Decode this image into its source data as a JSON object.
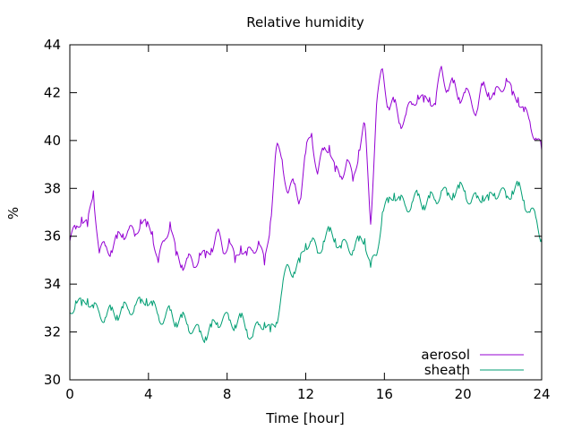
{
  "chart_data": {
    "type": "line",
    "title": "Relative humidity",
    "xlabel": "Time [hour]",
    "ylabel": "%",
    "xlim": [
      0,
      24
    ],
    "ylim": [
      30,
      44
    ],
    "xticks": [
      0,
      4,
      8,
      12,
      16,
      20,
      24
    ],
    "yticks": [
      30,
      32,
      34,
      36,
      38,
      40,
      42,
      44
    ],
    "grid": false,
    "legend_position": "bottom-right",
    "series": [
      {
        "name": "aerosol",
        "color": "#9400d3",
        "x": [
          0,
          0.3,
          0.6,
          0.9,
          1.2,
          1.5,
          1.8,
          2.1,
          2.4,
          2.7,
          3.0,
          3.3,
          3.6,
          3.9,
          4.2,
          4.5,
          4.8,
          5.1,
          5.4,
          5.7,
          6.0,
          6.3,
          6.6,
          6.9,
          7.2,
          7.5,
          7.8,
          8.1,
          8.4,
          8.7,
          9.0,
          9.3,
          9.6,
          9.9,
          10.2,
          10.5,
          10.8,
          11.1,
          11.4,
          11.7,
          12.0,
          12.3,
          12.6,
          12.9,
          13.2,
          13.5,
          13.8,
          14.1,
          14.4,
          14.7,
          15.0,
          15.3,
          15.6,
          15.9,
          16.2,
          16.5,
          16.8,
          17.1,
          17.4,
          17.7,
          18.0,
          18.3,
          18.6,
          18.9,
          19.2,
          19.5,
          19.8,
          20.1,
          20.4,
          20.7,
          21.0,
          21.3,
          21.6,
          21.9,
          22.2,
          22.5,
          22.8,
          23.1,
          23.4,
          23.7,
          24.0
        ],
        "y": [
          35.8,
          36.3,
          36.8,
          36.4,
          37.9,
          35.3,
          35.6,
          35.4,
          35.9,
          36.1,
          36.3,
          36.0,
          36.7,
          36.4,
          36.2,
          34.9,
          35.8,
          36.6,
          35.2,
          34.8,
          35.1,
          34.7,
          35.3,
          35.1,
          35.5,
          36.2,
          35.3,
          35.9,
          34.9,
          35.6,
          35.2,
          35.4,
          35.8,
          34.8,
          36.6,
          39.7,
          39.2,
          37.8,
          38.2,
          37.5,
          39.5,
          40.3,
          38.6,
          39.6,
          39.8,
          38.7,
          38.5,
          39.2,
          38.3,
          39.6,
          40.7,
          36.5,
          41.5,
          43.0,
          41.4,
          41.6,
          40.7,
          41.1,
          41.5,
          41.9,
          41.6,
          41.8,
          41.5,
          43.1,
          42.1,
          42.4,
          41.8,
          42.0,
          41.7,
          41.2,
          42.3,
          42.0,
          41.9,
          42.1,
          42.6,
          41.9,
          41.8,
          41.2,
          40.8,
          40.1,
          39.6
        ]
      },
      {
        "name": "sheath",
        "color": "#009e73",
        "x": [
          0,
          0.3,
          0.6,
          0.9,
          1.2,
          1.5,
          1.8,
          2.1,
          2.4,
          2.7,
          3.0,
          3.3,
          3.6,
          3.9,
          4.2,
          4.5,
          4.8,
          5.1,
          5.4,
          5.7,
          6.0,
          6.3,
          6.6,
          6.9,
          7.2,
          7.5,
          7.8,
          8.1,
          8.4,
          8.7,
          9.0,
          9.3,
          9.6,
          9.9,
          10.2,
          10.5,
          10.8,
          11.1,
          11.4,
          11.7,
          12.0,
          12.3,
          12.6,
          12.9,
          13.2,
          13.5,
          13.8,
          14.1,
          14.4,
          14.7,
          15.0,
          15.3,
          15.6,
          15.9,
          16.2,
          16.5,
          16.8,
          17.1,
          17.4,
          17.7,
          18.0,
          18.3,
          18.6,
          18.9,
          19.2,
          19.5,
          19.8,
          20.1,
          20.4,
          20.7,
          21.0,
          21.3,
          21.6,
          21.9,
          22.2,
          22.5,
          22.8,
          23.1,
          23.4,
          23.7,
          24.0
        ],
        "y": [
          32.8,
          33.3,
          33.1,
          33.4,
          33.0,
          32.8,
          32.6,
          32.9,
          32.7,
          33.0,
          32.9,
          33.1,
          33.2,
          33.4,
          33.1,
          32.7,
          32.5,
          32.9,
          32.4,
          32.6,
          32.3,
          32.1,
          32.0,
          31.8,
          32.2,
          32.4,
          32.6,
          32.5,
          32.3,
          32.6,
          32.1,
          31.8,
          32.3,
          32.4,
          32.0,
          32.4,
          33.8,
          34.8,
          34.5,
          34.9,
          35.7,
          35.8,
          35.3,
          35.8,
          36.2,
          35.9,
          35.5,
          35.7,
          35.4,
          35.8,
          35.9,
          34.7,
          35.2,
          37.0,
          37.4,
          37.8,
          37.5,
          37.2,
          37.4,
          37.7,
          37.3,
          37.6,
          37.5,
          37.9,
          37.7,
          37.8,
          38.0,
          37.9,
          37.4,
          37.6,
          37.7,
          37.5,
          37.8,
          37.9,
          37.6,
          37.9,
          38.1,
          37.5,
          37.0,
          36.8,
          35.9
        ]
      }
    ]
  }
}
